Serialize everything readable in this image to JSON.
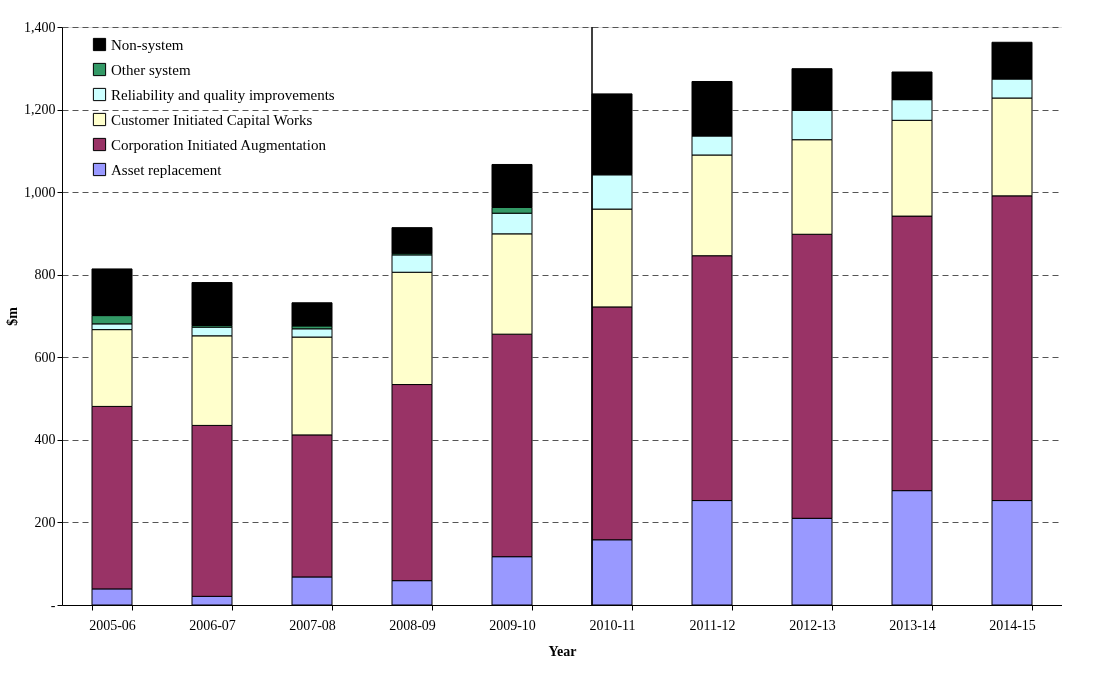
{
  "chart_data": {
    "type": "bar",
    "stacked": true,
    "xlabel": "Year",
    "ylabel": "$m",
    "categories": [
      "2005-06",
      "2006-07",
      "2007-08",
      "2008-09",
      "2009-10",
      "2010-11",
      "2011-12",
      "2012-13",
      "2013-14",
      "2014-15"
    ],
    "series": [
      {
        "name": "Asset replacement",
        "color": "#9999ff",
        "values": [
          39,
          21,
          68,
          59,
          117,
          158,
          253,
          210,
          277,
          253
        ]
      },
      {
        "name": "Corporation Initiated Augmentation",
        "color": "#993366",
        "values": [
          442,
          414,
          344,
          475,
          539,
          564,
          593,
          688,
          665,
          738
        ]
      },
      {
        "name": "Customer Initiated Capital Works",
        "color": "#ffffcc",
        "values": [
          186,
          217,
          237,
          272,
          243,
          237,
          244,
          229,
          232,
          237
        ]
      },
      {
        "name": "Reliability and quality improvements",
        "color": "#ccffff",
        "values": [
          14,
          21,
          20,
          42,
          50,
          83,
          46,
          71,
          50,
          46
        ]
      },
      {
        "name": "Other system",
        "color": "#339966",
        "values": [
          20,
          4,
          7,
          4,
          14,
          null,
          null,
          null,
          null,
          null
        ]
      },
      {
        "name": "Non-system",
        "color": "#000000",
        "values": [
          113,
          104,
          56,
          62,
          104,
          196,
          132,
          101,
          67,
          89
        ]
      }
    ],
    "ylim": [
      0,
      1400
    ],
    "yticks": [
      {
        "value": 0,
        "label": "-"
      },
      200,
      400,
      600,
      800,
      {
        "value": 1000,
        "label": "1,000"
      },
      {
        "value": 1200,
        "label": "1,200"
      },
      {
        "value": 1400,
        "label": "1,400"
      }
    ],
    "grid": "y",
    "line_style": "dashed",
    "legend": "top left",
    "ref_lines": [
      {
        "axis": "x",
        "value": "2010-11",
        "color": "#000000"
      }
    ]
  }
}
